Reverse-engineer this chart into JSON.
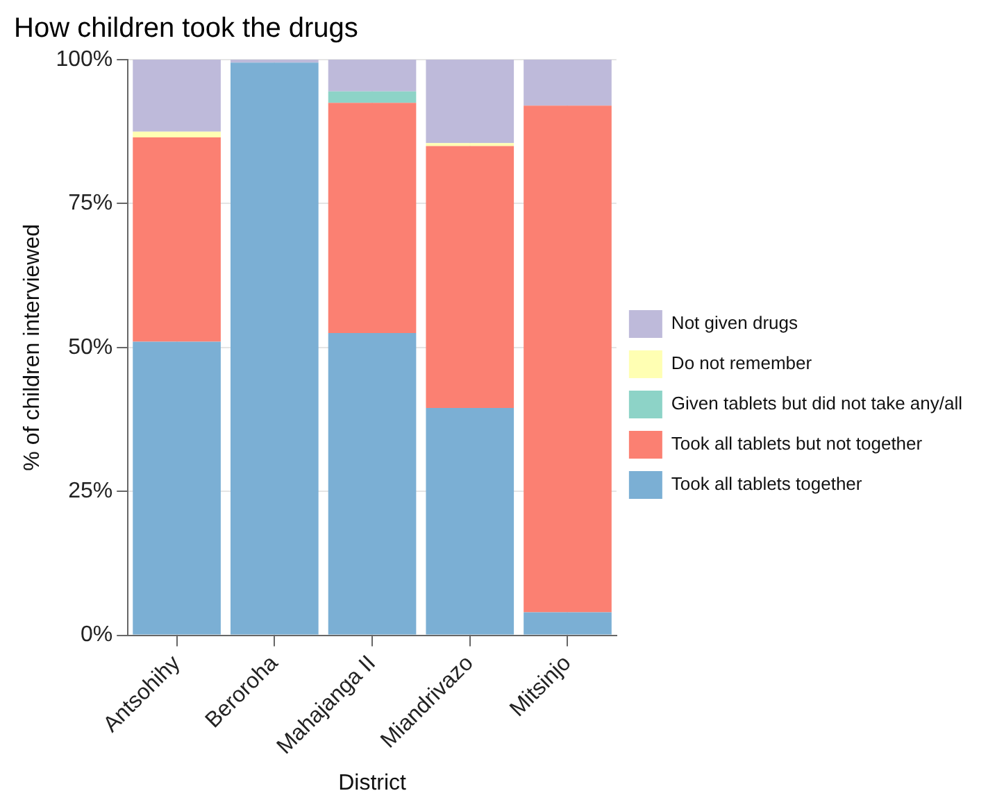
{
  "chart_data": {
    "type": "bar",
    "title": "How children took the drugs",
    "xlabel": "District",
    "ylabel": "% of children interviewed",
    "stacked": true,
    "categories": [
      "Antsohihy",
      "Beroroha",
      "Mahajanga II",
      "Miandrivazo",
      "Mitsinjo"
    ],
    "series": [
      {
        "name": "Took all tablets together",
        "color": "#7bafd4",
        "values": [
          51,
          99.5,
          52.5,
          39.5,
          4
        ]
      },
      {
        "name": "Took all tablets but not together",
        "color": "#fb8072",
        "values": [
          35.5,
          0,
          40,
          45.5,
          88
        ]
      },
      {
        "name": "Given tablets but did not take any/all",
        "color": "#8dd3c7",
        "values": [
          0,
          0,
          2,
          0,
          0
        ]
      },
      {
        "name": "Do not remember",
        "color": "#ffffb3",
        "values": [
          1,
          0,
          0,
          0.5,
          0
        ]
      },
      {
        "name": "Not given drugs",
        "color": "#bebada",
        "values": [
          12.5,
          0.5,
          5.5,
          14.5,
          8
        ]
      }
    ],
    "ylim": [
      0,
      100
    ],
    "yticks": [
      {
        "value": 0,
        "label": "0%"
      },
      {
        "value": 25,
        "label": "25%"
      },
      {
        "value": 50,
        "label": "50%"
      },
      {
        "value": 75,
        "label": "75%"
      },
      {
        "value": 100,
        "label": "100%"
      }
    ],
    "grid": true,
    "legend": "right"
  }
}
